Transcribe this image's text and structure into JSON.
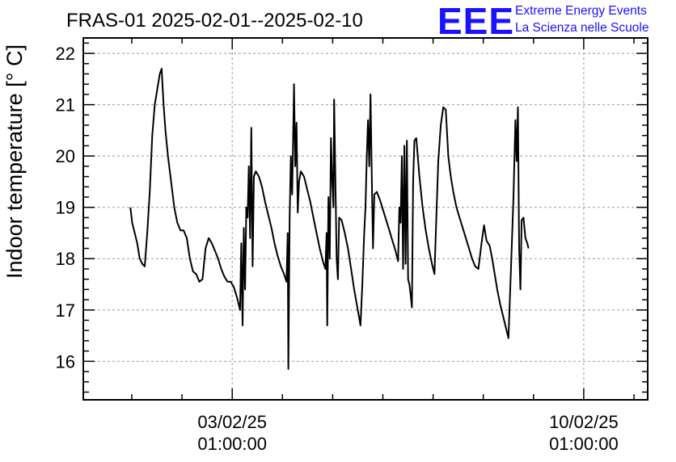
{
  "logo": {
    "letters": "EEE",
    "line1": "Extreme Energy Events",
    "line2": "La Scienza nelle Scuole",
    "color": "#1a12ff"
  },
  "chart_data": {
    "type": "line",
    "title": "FRAS-01 2025-02-01--2025-02-10",
    "ylabel": "Indoor temperature [° C]",
    "xlabel": "",
    "ylim": [
      15.25,
      22.3
    ],
    "xlim": [
      0.0,
      9.0
    ],
    "y_ticks": [
      16,
      17,
      18,
      19,
      20,
      21,
      22
    ],
    "x_ticks": [
      {
        "x": 2.375,
        "date": "03/02/25",
        "time": "01:00:00"
      },
      {
        "x": 7.98,
        "date": "10/02/25",
        "time": "01:00:00"
      }
    ],
    "grid": true,
    "legend": "none",
    "series": [
      {
        "color": "#000000",
        "points": [
          [
            0.75,
            19.0
          ],
          [
            0.78,
            18.7
          ],
          [
            0.82,
            18.5
          ],
          [
            0.86,
            18.3
          ],
          [
            0.9,
            18.0
          ],
          [
            0.94,
            17.9
          ],
          [
            0.98,
            17.85
          ],
          [
            1.02,
            18.5
          ],
          [
            1.06,
            19.3
          ],
          [
            1.1,
            20.4
          ],
          [
            1.14,
            21.0
          ],
          [
            1.18,
            21.3
          ],
          [
            1.22,
            21.6
          ],
          [
            1.25,
            21.7
          ],
          [
            1.28,
            21.0
          ],
          [
            1.31,
            20.5
          ],
          [
            1.35,
            20.0
          ],
          [
            1.4,
            19.5
          ],
          [
            1.45,
            19.0
          ],
          [
            1.5,
            18.7
          ],
          [
            1.55,
            18.55
          ],
          [
            1.6,
            18.55
          ],
          [
            1.65,
            18.4
          ],
          [
            1.7,
            18.0
          ],
          [
            1.75,
            17.75
          ],
          [
            1.8,
            17.7
          ],
          [
            1.85,
            17.55
          ],
          [
            1.9,
            17.6
          ],
          [
            1.95,
            18.2
          ],
          [
            2.0,
            18.4
          ],
          [
            2.05,
            18.3
          ],
          [
            2.1,
            18.15
          ],
          [
            2.15,
            18.0
          ],
          [
            2.2,
            17.8
          ],
          [
            2.25,
            17.65
          ],
          [
            2.3,
            17.55
          ],
          [
            2.35,
            17.55
          ],
          [
            2.4,
            17.45
          ],
          [
            2.45,
            17.25
          ],
          [
            2.5,
            17.0
          ],
          [
            2.52,
            18.3
          ],
          [
            2.54,
            16.7
          ],
          [
            2.56,
            18.6
          ],
          [
            2.58,
            17.4
          ],
          [
            2.6,
            19.0
          ],
          [
            2.62,
            18.8
          ],
          [
            2.64,
            19.8
          ],
          [
            2.66,
            18.4
          ],
          [
            2.68,
            20.55
          ],
          [
            2.7,
            17.85
          ],
          [
            2.72,
            19.6
          ],
          [
            2.75,
            19.7
          ],
          [
            2.8,
            19.6
          ],
          [
            2.85,
            19.4
          ],
          [
            2.9,
            19.1
          ],
          [
            2.95,
            18.85
          ],
          [
            3.0,
            18.6
          ],
          [
            3.05,
            18.3
          ],
          [
            3.1,
            18.05
          ],
          [
            3.15,
            17.85
          ],
          [
            3.2,
            17.7
          ],
          [
            3.24,
            17.55
          ],
          [
            3.26,
            18.5
          ],
          [
            3.27,
            15.85
          ],
          [
            3.29,
            18.8
          ],
          [
            3.31,
            20.0
          ],
          [
            3.33,
            19.25
          ],
          [
            3.35,
            20.6
          ],
          [
            3.36,
            21.4
          ],
          [
            3.38,
            19.8
          ],
          [
            3.4,
            20.65
          ],
          [
            3.42,
            18.9
          ],
          [
            3.44,
            19.5
          ],
          [
            3.47,
            19.7
          ],
          [
            3.52,
            19.6
          ],
          [
            3.57,
            19.35
          ],
          [
            3.62,
            19.1
          ],
          [
            3.67,
            18.8
          ],
          [
            3.72,
            18.5
          ],
          [
            3.77,
            18.2
          ],
          [
            3.82,
            17.95
          ],
          [
            3.86,
            17.8
          ],
          [
            3.88,
            18.5
          ],
          [
            3.89,
            16.7
          ],
          [
            3.91,
            19.2
          ],
          [
            3.93,
            18.0
          ],
          [
            3.95,
            20.35
          ],
          [
            3.97,
            19.5
          ],
          [
            3.99,
            19.0
          ],
          [
            4.0,
            21.1
          ],
          [
            4.02,
            19.5
          ],
          [
            4.04,
            18.0
          ],
          [
            4.06,
            17.6
          ],
          [
            4.08,
            18.8
          ],
          [
            4.12,
            18.75
          ],
          [
            4.17,
            18.5
          ],
          [
            4.22,
            18.2
          ],
          [
            4.27,
            17.8
          ],
          [
            4.32,
            17.4
          ],
          [
            4.37,
            17.05
          ],
          [
            4.4,
            16.85
          ],
          [
            4.42,
            16.7
          ],
          [
            4.45,
            17.5
          ],
          [
            4.48,
            18.5
          ],
          [
            4.5,
            19.0
          ],
          [
            4.52,
            20.0
          ],
          [
            4.54,
            20.7
          ],
          [
            4.56,
            19.8
          ],
          [
            4.58,
            21.2
          ],
          [
            4.6,
            19.6
          ],
          [
            4.62,
            18.2
          ],
          [
            4.64,
            19.25
          ],
          [
            4.68,
            19.3
          ],
          [
            4.73,
            19.15
          ],
          [
            4.78,
            18.95
          ],
          [
            4.83,
            18.75
          ],
          [
            4.88,
            18.55
          ],
          [
            4.93,
            18.35
          ],
          [
            4.98,
            18.15
          ],
          [
            5.02,
            17.95
          ],
          [
            5.04,
            19.0
          ],
          [
            5.06,
            18.7
          ],
          [
            5.08,
            20.0
          ],
          [
            5.1,
            17.8
          ],
          [
            5.12,
            20.2
          ],
          [
            5.14,
            17.9
          ],
          [
            5.16,
            20.3
          ],
          [
            5.18,
            17.6
          ],
          [
            5.2,
            17.5
          ],
          [
            5.22,
            17.3
          ],
          [
            5.24,
            17.05
          ],
          [
            5.26,
            19.5
          ],
          [
            5.28,
            20.3
          ],
          [
            5.31,
            20.35
          ],
          [
            5.36,
            19.6
          ],
          [
            5.41,
            19.0
          ],
          [
            5.46,
            18.55
          ],
          [
            5.51,
            18.2
          ],
          [
            5.56,
            17.9
          ],
          [
            5.6,
            17.7
          ],
          [
            5.63,
            18.8
          ],
          [
            5.66,
            19.9
          ],
          [
            5.7,
            20.6
          ],
          [
            5.74,
            20.95
          ],
          [
            5.78,
            20.9
          ],
          [
            5.82,
            20.0
          ],
          [
            5.86,
            19.6
          ],
          [
            5.9,
            19.3
          ],
          [
            5.95,
            19.0
          ],
          [
            6.0,
            18.8
          ],
          [
            6.05,
            18.6
          ],
          [
            6.1,
            18.4
          ],
          [
            6.15,
            18.2
          ],
          [
            6.2,
            18.0
          ],
          [
            6.25,
            17.85
          ],
          [
            6.3,
            17.8
          ],
          [
            6.35,
            18.3
          ],
          [
            6.39,
            18.65
          ],
          [
            6.43,
            18.35
          ],
          [
            6.48,
            18.25
          ],
          [
            6.52,
            18.0
          ],
          [
            6.56,
            17.7
          ],
          [
            6.6,
            17.4
          ],
          [
            6.65,
            17.1
          ],
          [
            6.7,
            16.85
          ],
          [
            6.75,
            16.6
          ],
          [
            6.78,
            16.45
          ],
          [
            6.82,
            17.8
          ],
          [
            6.86,
            19.2
          ],
          [
            6.89,
            20.7
          ],
          [
            6.91,
            19.9
          ],
          [
            6.93,
            20.95
          ],
          [
            6.95,
            18.2
          ],
          [
            6.97,
            17.4
          ],
          [
            6.99,
            18.75
          ],
          [
            7.02,
            18.8
          ],
          [
            7.05,
            18.4
          ],
          [
            7.08,
            18.3
          ],
          [
            7.1,
            18.2
          ]
        ]
      }
    ]
  }
}
